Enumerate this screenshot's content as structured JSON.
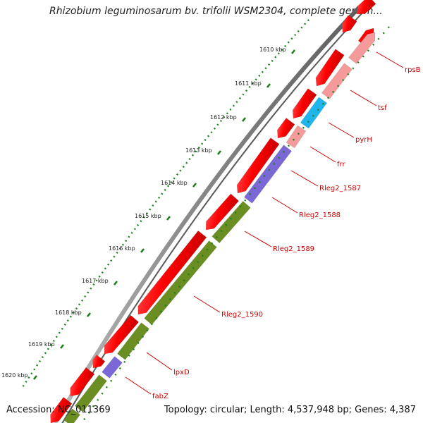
{
  "title": "Rhizobium leguminosarum bv. trifolii WSM2304, complete genom...",
  "footer": {
    "accession": "Accession: NC_011369",
    "topology": "Topology: circular; Length: 4,537,948 bp; Genes: 4,387"
  },
  "scale_labels": [
    "1610 kbp",
    "1611 kbp",
    "1612 kbp",
    "1613 kbp",
    "1614 kbp",
    "1615 kbp",
    "1616 kbp",
    "1617 kbp",
    "1618 kbp",
    "1619 kbp",
    "1620 kbp"
  ],
  "gene_labels": [
    "rpsB",
    "tsf",
    "pyrH",
    "frr",
    "Rleg2_1587",
    "Rleg2_1588",
    "Rleg2_1589",
    "Rleg2_1590",
    "lpxD",
    "fabZ"
  ],
  "colors": {
    "forward_cds": "#ff0000",
    "ribosomal": "#f59a9a",
    "pyrH": "#21b5ee",
    "purple_cds": "#7b68d6",
    "olive_cds": "#6b8e23",
    "backbone": "#8c8c8c",
    "label_text": "#cc0000",
    "ticks": "#1a7f1a"
  }
}
